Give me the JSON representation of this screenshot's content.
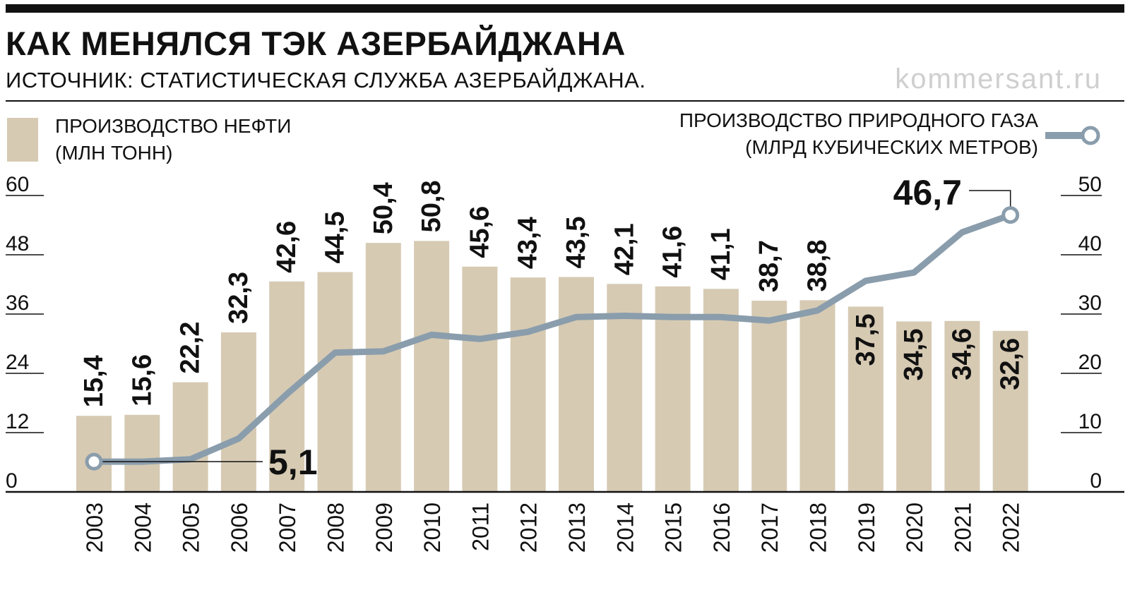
{
  "header": {
    "title": "КАК МЕНЯЛСЯ ТЭК АЗЕРБАЙДЖАНА",
    "source": "ИСТОЧНИК: СТАТИСТИЧЕСКАЯ СЛУЖБА АЗЕРБАЙДЖАНА.",
    "site": "kommersant.ru"
  },
  "legend": {
    "oil_line1": "ПРОИЗВОДСТВО НЕФТИ",
    "oil_line2": "(МЛН ТОНН)",
    "gas_line1": "ПРОИЗВОДСТВО ПРИРОДНОГО ГАЗА",
    "gas_line2": "(МЛРД КУБИЧЕСКИХ МЕТРОВ)"
  },
  "colors": {
    "bar": "#d6cab3",
    "line": "#8a9dac",
    "text": "#111111"
  },
  "chart_data": {
    "type": "bar",
    "categories": [
      "2003",
      "2004",
      "2005",
      "2006",
      "2007",
      "2008",
      "2009",
      "2010",
      "2011",
      "2012",
      "2013",
      "2014",
      "2015",
      "2016",
      "2017",
      "2018",
      "2019",
      "2020",
      "2021",
      "2022"
    ],
    "series": [
      {
        "name": "ПРОИЗВОДСТВО НЕФТИ (МЛН ТОНН)",
        "type": "bar",
        "axis": "left",
        "values": [
          15.4,
          15.6,
          22.2,
          32.3,
          42.6,
          44.5,
          50.4,
          50.8,
          45.6,
          43.4,
          43.5,
          42.1,
          41.6,
          41.1,
          38.7,
          38.8,
          37.5,
          34.5,
          34.6,
          32.6
        ],
        "labels": [
          "15,4",
          "15,6",
          "22,2",
          "32,3",
          "42,6",
          "44,5",
          "50,4",
          "50,8",
          "45,6",
          "43,4",
          "43,5",
          "42,1",
          "41,6",
          "41,1",
          "38,7",
          "38,8",
          "37,5",
          "34,5",
          "34,6",
          "32,6"
        ]
      },
      {
        "name": "ПРОИЗВОДСТВО ПРИРОДНОГО ГАЗА (МЛРД КУБИЧЕСКИХ МЕТРОВ)",
        "type": "line",
        "axis": "right",
        "values": [
          5.1,
          5.1,
          5.5,
          9.0,
          16.5,
          23.5,
          23.7,
          26.5,
          25.8,
          27.0,
          29.5,
          29.7,
          29.5,
          29.5,
          28.9,
          30.6,
          35.6,
          37.0,
          43.8,
          46.7
        ],
        "annotations": [
          {
            "category": "2003",
            "label": "5,1"
          },
          {
            "category": "2022",
            "label": "46,7"
          }
        ]
      }
    ],
    "y_left": {
      "ylim": [
        0,
        60
      ],
      "ticks": [
        "0",
        "12",
        "24",
        "36",
        "48",
        "60"
      ]
    },
    "y_right": {
      "ylim": [
        0,
        50
      ],
      "ticks": [
        "0",
        "10",
        "20",
        "30",
        "40",
        "50"
      ]
    },
    "grid": false,
    "legend_position": "top"
  }
}
